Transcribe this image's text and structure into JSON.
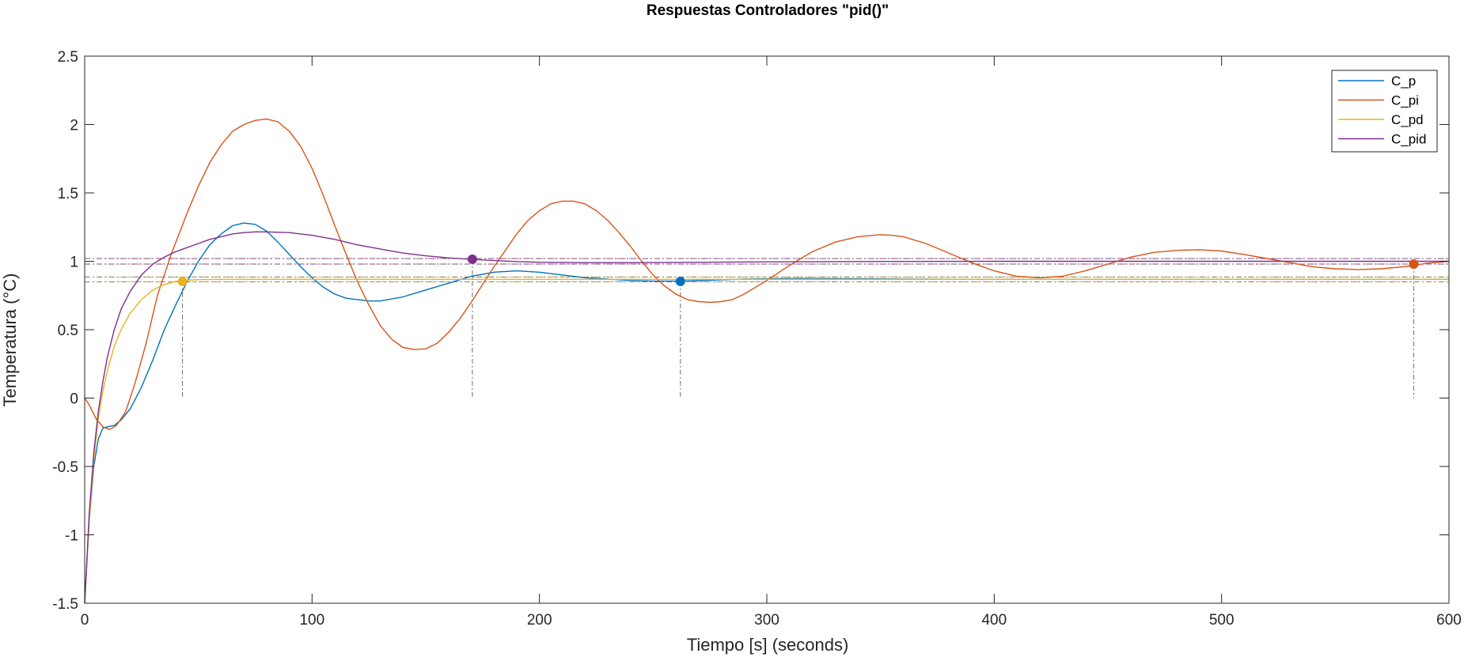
{
  "chart_data": {
    "type": "line",
    "title": "Respuestas Controladores \"pid()\"",
    "xlabel": "Tiempo [s] (seconds)",
    "ylabel": "Temperatura (°C)",
    "xlim": [
      0,
      600
    ],
    "ylim": [
      -1.5,
      2.5
    ],
    "xticks": [
      0,
      100,
      200,
      300,
      400,
      500,
      600
    ],
    "xtick_labels": [
      "0",
      "100",
      "200",
      "300",
      "400",
      "500",
      "600"
    ],
    "yticks": [
      -1.5,
      -1,
      -0.5,
      0,
      0.5,
      1,
      1.5,
      2,
      2.5
    ],
    "ytick_labels": [
      "-1.5",
      "-1",
      "-0.5",
      "0",
      "0.5",
      "1",
      "1.5",
      "2",
      "2.5"
    ],
    "grid": false,
    "legend_position": "top-right",
    "series": [
      {
        "name": "C_p",
        "color": "#0072BD",
        "points": [
          [
            0,
            -1.5
          ],
          [
            2,
            -0.9
          ],
          [
            4,
            -0.5
          ],
          [
            6,
            -0.3
          ],
          [
            8,
            -0.22
          ],
          [
            10,
            -0.21
          ],
          [
            13,
            -0.2
          ],
          [
            16,
            -0.16
          ],
          [
            20,
            -0.08
          ],
          [
            25,
            0.08
          ],
          [
            30,
            0.28
          ],
          [
            35,
            0.5
          ],
          [
            40,
            0.68
          ],
          [
            45,
            0.85
          ],
          [
            50,
            1.0
          ],
          [
            55,
            1.12
          ],
          [
            60,
            1.2
          ],
          [
            65,
            1.26
          ],
          [
            70,
            1.28
          ],
          [
            75,
            1.27
          ],
          [
            80,
            1.22
          ],
          [
            85,
            1.14
          ],
          [
            90,
            1.05
          ],
          [
            95,
            0.96
          ],
          [
            100,
            0.88
          ],
          [
            105,
            0.81
          ],
          [
            110,
            0.76
          ],
          [
            115,
            0.73
          ],
          [
            120,
            0.72
          ],
          [
            125,
            0.71
          ],
          [
            130,
            0.71
          ],
          [
            140,
            0.74
          ],
          [
            150,
            0.79
          ],
          [
            160,
            0.84
          ],
          [
            170,
            0.89
          ],
          [
            180,
            0.92
          ],
          [
            190,
            0.93
          ],
          [
            200,
            0.92
          ],
          [
            210,
            0.9
          ],
          [
            220,
            0.88
          ],
          [
            230,
            0.87
          ],
          [
            240,
            0.86
          ],
          [
            250,
            0.855
          ],
          [
            262,
            0.855
          ],
          [
            275,
            0.862
          ],
          [
            290,
            0.87
          ],
          [
            310,
            0.874
          ],
          [
            340,
            0.872
          ],
          [
            380,
            0.869
          ],
          [
            420,
            0.868
          ],
          [
            500,
            0.868
          ],
          [
            600,
            0.868
          ]
        ]
      },
      {
        "name": "C_pi",
        "color": "#D95319",
        "points": [
          [
            0,
            0.0
          ],
          [
            2,
            -0.05
          ],
          [
            5,
            -0.15
          ],
          [
            8,
            -0.21
          ],
          [
            11,
            -0.23
          ],
          [
            14,
            -0.2
          ],
          [
            18,
            -0.1
          ],
          [
            22,
            0.1
          ],
          [
            27,
            0.4
          ],
          [
            32,
            0.75
          ],
          [
            38,
            1.05
          ],
          [
            45,
            1.35
          ],
          [
            50,
            1.55
          ],
          [
            55,
            1.72
          ],
          [
            60,
            1.85
          ],
          [
            65,
            1.95
          ],
          [
            70,
            2.0
          ],
          [
            75,
            2.03
          ],
          [
            80,
            2.04
          ],
          [
            85,
            2.02
          ],
          [
            90,
            1.95
          ],
          [
            95,
            1.84
          ],
          [
            100,
            1.68
          ],
          [
            105,
            1.48
          ],
          [
            110,
            1.26
          ],
          [
            115,
            1.05
          ],
          [
            120,
            0.85
          ],
          [
            125,
            0.68
          ],
          [
            130,
            0.53
          ],
          [
            135,
            0.43
          ],
          [
            140,
            0.37
          ],
          [
            145,
            0.355
          ],
          [
            150,
            0.36
          ],
          [
            155,
            0.4
          ],
          [
            160,
            0.48
          ],
          [
            165,
            0.58
          ],
          [
            170,
            0.7
          ],
          [
            175,
            0.83
          ],
          [
            180,
            0.96
          ],
          [
            185,
            1.08
          ],
          [
            190,
            1.2
          ],
          [
            195,
            1.3
          ],
          [
            200,
            1.37
          ],
          [
            205,
            1.42
          ],
          [
            210,
            1.44
          ],
          [
            215,
            1.44
          ],
          [
            220,
            1.42
          ],
          [
            225,
            1.37
          ],
          [
            230,
            1.3
          ],
          [
            235,
            1.21
          ],
          [
            240,
            1.11
          ],
          [
            245,
            1.0
          ],
          [
            250,
            0.9
          ],
          [
            255,
            0.82
          ],
          [
            260,
            0.76
          ],
          [
            265,
            0.72
          ],
          [
            270,
            0.705
          ],
          [
            275,
            0.7
          ],
          [
            280,
            0.705
          ],
          [
            285,
            0.72
          ],
          [
            290,
            0.76
          ],
          [
            300,
            0.86
          ],
          [
            310,
            0.97
          ],
          [
            320,
            1.07
          ],
          [
            330,
            1.14
          ],
          [
            340,
            1.18
          ],
          [
            350,
            1.195
          ],
          [
            355,
            1.19
          ],
          [
            360,
            1.18
          ],
          [
            370,
            1.13
          ],
          [
            380,
            1.06
          ],
          [
            390,
            0.99
          ],
          [
            400,
            0.93
          ],
          [
            410,
            0.89
          ],
          [
            420,
            0.88
          ],
          [
            430,
            0.89
          ],
          [
            440,
            0.93
          ],
          [
            450,
            0.98
          ],
          [
            460,
            1.03
          ],
          [
            470,
            1.065
          ],
          [
            480,
            1.08
          ],
          [
            490,
            1.085
          ],
          [
            500,
            1.075
          ],
          [
            510,
            1.05
          ],
          [
            520,
            1.02
          ],
          [
            530,
            0.99
          ],
          [
            540,
            0.96
          ],
          [
            550,
            0.945
          ],
          [
            560,
            0.94
          ],
          [
            570,
            0.945
          ],
          [
            580,
            0.96
          ],
          [
            585,
            0.97
          ],
          [
            590,
            0.985
          ],
          [
            600,
            1.0
          ]
        ]
      },
      {
        "name": "C_pd",
        "color": "#EDB120",
        "points": [
          [
            0,
            -1.5
          ],
          [
            2,
            -0.9
          ],
          [
            4,
            -0.45
          ],
          [
            6,
            -0.15
          ],
          [
            8,
            0.05
          ],
          [
            10,
            0.2
          ],
          [
            13,
            0.38
          ],
          [
            16,
            0.5
          ],
          [
            20,
            0.62
          ],
          [
            25,
            0.72
          ],
          [
            30,
            0.79
          ],
          [
            35,
            0.83
          ],
          [
            40,
            0.853
          ],
          [
            43,
            0.86
          ],
          [
            50,
            0.866
          ],
          [
            60,
            0.868
          ],
          [
            80,
            0.868
          ],
          [
            600,
            0.868
          ]
        ]
      },
      {
        "name": "C_pid",
        "color": "#7E2F8E",
        "points": [
          [
            0,
            -1.5
          ],
          [
            2,
            -0.85
          ],
          [
            4,
            -0.4
          ],
          [
            6,
            -0.1
          ],
          [
            8,
            0.12
          ],
          [
            10,
            0.3
          ],
          [
            13,
            0.5
          ],
          [
            16,
            0.65
          ],
          [
            20,
            0.78
          ],
          [
            25,
            0.9
          ],
          [
            30,
            0.98
          ],
          [
            35,
            1.03
          ],
          [
            40,
            1.07
          ],
          [
            45,
            1.1
          ],
          [
            50,
            1.13
          ],
          [
            55,
            1.16
          ],
          [
            60,
            1.18
          ],
          [
            65,
            1.2
          ],
          [
            70,
            1.21
          ],
          [
            75,
            1.215
          ],
          [
            80,
            1.215
          ],
          [
            90,
            1.21
          ],
          [
            100,
            1.19
          ],
          [
            110,
            1.16
          ],
          [
            120,
            1.12
          ],
          [
            130,
            1.09
          ],
          [
            140,
            1.06
          ],
          [
            150,
            1.04
          ],
          [
            160,
            1.025
          ],
          [
            170,
            1.015
          ],
          [
            180,
            1.005
          ],
          [
            190,
            0.998
          ],
          [
            200,
            0.993
          ],
          [
            220,
            0.99
          ],
          [
            240,
            0.99
          ],
          [
            260,
            0.992
          ],
          [
            300,
            0.996
          ],
          [
            350,
            0.999
          ],
          [
            400,
            1.0
          ],
          [
            600,
            1.0
          ]
        ]
      }
    ],
    "settling_markers": [
      {
        "series": "C_pd",
        "x": 43,
        "y": 0.853,
        "color": "#EDB120"
      },
      {
        "series": "C_pid",
        "x": 170.5,
        "y": 1.015,
        "color": "#7E2F8E"
      },
      {
        "series": "C_p",
        "x": 262,
        "y": 0.853,
        "color": "#0072BD"
      },
      {
        "series": "C_pi",
        "x": 584.5,
        "y": 0.98,
        "color": "#D95319"
      }
    ],
    "settling_bands": [
      {
        "color": "#0072BD",
        "y": [
          0.85,
          0.885
        ]
      },
      {
        "color": "#D95319",
        "y": [
          0.98,
          1.02
        ]
      },
      {
        "color": "#EDB120",
        "y": [
          0.85,
          0.885
        ]
      },
      {
        "color": "#7E2F8E",
        "y": [
          0.98,
          1.02
        ]
      }
    ]
  }
}
